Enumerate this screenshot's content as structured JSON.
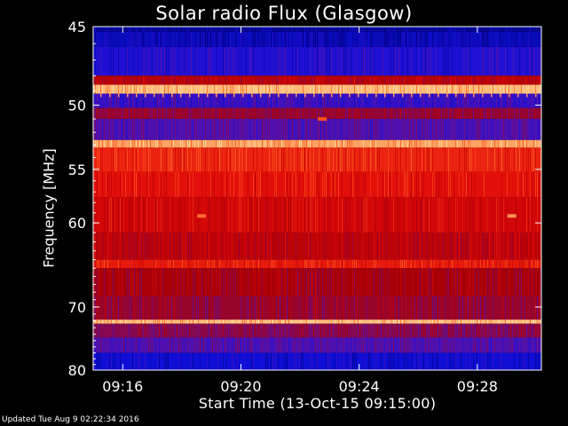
{
  "chart_data": {
    "type": "heatmap",
    "title": "Solar radio Flux (Glasgow)",
    "ylabel": "Frequency [MHz]",
    "xlabel": "Start Time (13-Oct-15 09:15:00)",
    "y_ticks": [
      "45",
      "50",
      "55",
      "60",
      "70",
      "80"
    ],
    "x_ticks": [
      "09:16",
      "09:20",
      "09:24",
      "09:28"
    ],
    "frequency_range_mhz": [
      45,
      80
    ],
    "y_scale": "reciprocal",
    "x_range": [
      "09:15:00",
      "09:30:10"
    ],
    "colormap": [
      "#00007a",
      "#1010e0",
      "#6010a0",
      "#a80008",
      "#e00808",
      "#ff6020",
      "#ffe0a0"
    ],
    "bands": [
      {
        "f_from": 45.0,
        "f_to": 45.3,
        "level": 0.05
      },
      {
        "f_from": 45.3,
        "f_to": 46.2,
        "level": 0.1
      },
      {
        "f_from": 46.2,
        "f_to": 48.0,
        "level": 0.2
      },
      {
        "f_from": 48.0,
        "f_to": 48.6,
        "level": 0.55
      },
      {
        "f_from": 48.6,
        "f_to": 49.2,
        "level": 0.95
      },
      {
        "f_from": 49.2,
        "f_to": 50.2,
        "level": 0.25
      },
      {
        "f_from": 50.2,
        "f_to": 51.0,
        "level": 0.45
      },
      {
        "f_from": 51.0,
        "f_to": 52.6,
        "level": 0.3
      },
      {
        "f_from": 52.6,
        "f_to": 53.2,
        "level": 0.92
      },
      {
        "f_from": 53.2,
        "f_to": 55.2,
        "level": 0.72
      },
      {
        "f_from": 55.2,
        "f_to": 57.5,
        "level": 0.68
      },
      {
        "f_from": 57.5,
        "f_to": 61.0,
        "level": 0.62
      },
      {
        "f_from": 61.0,
        "f_to": 64.0,
        "level": 0.56
      },
      {
        "f_from": 64.0,
        "f_to": 65.0,
        "level": 0.7
      },
      {
        "f_from": 65.0,
        "f_to": 68.5,
        "level": 0.5
      },
      {
        "f_from": 68.5,
        "f_to": 71.8,
        "level": 0.46
      },
      {
        "f_from": 71.8,
        "f_to": 72.4,
        "level": 0.95
      },
      {
        "f_from": 72.4,
        "f_to": 74.5,
        "level": 0.42
      },
      {
        "f_from": 74.5,
        "f_to": 77.0,
        "level": 0.3
      },
      {
        "f_from": 77.0,
        "f_to": 80.0,
        "level": 0.15
      }
    ],
    "bursts": [
      {
        "time": "09:18:40",
        "f": 59.3,
        "level": 0.85
      },
      {
        "time": "09:29:10",
        "f": 59.3,
        "level": 0.9
      },
      {
        "time": "09:22:45",
        "f": 51.0,
        "level": 0.8
      }
    ]
  },
  "footer": "Updated Tue Aug  9 02:22:34 2016"
}
